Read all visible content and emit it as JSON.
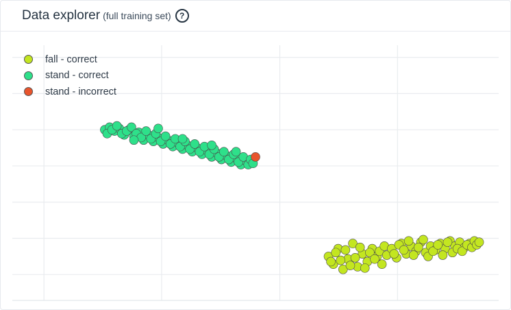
{
  "header": {
    "title": "Data explorer",
    "subtitle": "(full training set)",
    "help_icon": "question-circle-icon"
  },
  "chart_data": {
    "type": "scatter",
    "title": "",
    "xlabel": "",
    "ylabel": "",
    "xlim": [
      0,
      100
    ],
    "ylim": [
      0,
      100
    ],
    "grid": true,
    "legend": "top-left",
    "series": [
      {
        "name": "fall - correct",
        "color": "#c3e620",
        "points": [
          [
            65.0,
            17.0
          ],
          [
            66.0,
            14.0
          ],
          [
            67.0,
            20.0
          ],
          [
            68.0,
            12.0
          ],
          [
            69.0,
            16.0
          ],
          [
            70.0,
            22.0
          ],
          [
            71.0,
            13.0
          ],
          [
            72.0,
            18.0
          ],
          [
            73.0,
            15.0
          ],
          [
            74.0,
            20.0
          ],
          [
            75.0,
            17.0
          ],
          [
            76.0,
            14.0
          ],
          [
            66.5,
            18.5
          ],
          [
            67.5,
            15.5
          ],
          [
            68.5,
            19.5
          ],
          [
            70.5,
            16.5
          ],
          [
            71.5,
            20.5
          ],
          [
            72.5,
            12.5
          ],
          [
            73.5,
            18.5
          ],
          [
            74.5,
            16.0
          ],
          [
            65.5,
            15.0
          ],
          [
            69.5,
            13.5
          ],
          [
            75.5,
            19.0
          ],
          [
            76.5,
            21.0
          ],
          [
            77.0,
            17.5
          ],
          [
            78.0,
            20.0
          ],
          [
            79.0,
            16.5
          ],
          [
            80.0,
            22.0
          ],
          [
            81.0,
            18.0
          ],
          [
            82.0,
            21.0
          ],
          [
            83.0,
            19.0
          ],
          [
            84.0,
            22.5
          ],
          [
            85.0,
            18.5
          ],
          [
            86.0,
            21.0
          ],
          [
            87.0,
            19.5
          ],
          [
            88.0,
            22.0
          ],
          [
            89.0,
            20.0
          ],
          [
            90.0,
            23.0
          ],
          [
            91.0,
            21.0
          ],
          [
            92.0,
            22.5
          ],
          [
            93.0,
            20.5
          ],
          [
            94.0,
            22.0
          ],
          [
            78.5,
            18.0
          ],
          [
            79.5,
            21.5
          ],
          [
            80.5,
            19.5
          ],
          [
            81.5,
            23.0
          ],
          [
            82.5,
            17.5
          ],
          [
            83.5,
            20.5
          ],
          [
            84.5,
            23.5
          ],
          [
            85.5,
            17.0
          ],
          [
            86.5,
            19.0
          ],
          [
            87.5,
            21.5
          ],
          [
            88.5,
            17.5
          ],
          [
            89.5,
            22.5
          ],
          [
            90.5,
            18.5
          ],
          [
            91.5,
            20.0
          ],
          [
            92.5,
            19.0
          ],
          [
            93.5,
            21.5
          ],
          [
            94.5,
            20.5
          ],
          [
            95.0,
            23.0
          ],
          [
            95.5,
            21.5
          ],
          [
            96.0,
            22.5
          ]
        ]
      },
      {
        "name": "stand - correct",
        "color": "#2ee08a",
        "points": [
          [
            19.0,
            66.0
          ],
          [
            20.0,
            67.0
          ],
          [
            21.0,
            65.5
          ],
          [
            22.0,
            66.5
          ],
          [
            23.0,
            64.0
          ],
          [
            24.0,
            66.0
          ],
          [
            25.0,
            63.5
          ],
          [
            26.0,
            65.0
          ],
          [
            27.0,
            62.0
          ],
          [
            28.0,
            64.0
          ],
          [
            29.0,
            61.5
          ],
          [
            30.0,
            63.0
          ],
          [
            31.0,
            60.5
          ],
          [
            32.0,
            62.0
          ],
          [
            33.0,
            59.5
          ],
          [
            34.0,
            61.0
          ],
          [
            35.0,
            58.5
          ],
          [
            36.0,
            60.0
          ],
          [
            37.0,
            57.5
          ],
          [
            38.0,
            59.0
          ],
          [
            39.0,
            56.5
          ],
          [
            40.0,
            58.0
          ],
          [
            41.0,
            55.5
          ],
          [
            42.0,
            57.0
          ],
          [
            43.0,
            54.5
          ],
          [
            44.0,
            56.0
          ],
          [
            45.0,
            53.5
          ],
          [
            46.0,
            55.0
          ],
          [
            47.0,
            52.5
          ],
          [
            48.0,
            54.0
          ],
          [
            19.5,
            64.5
          ],
          [
            20.5,
            66.0
          ],
          [
            21.5,
            67.5
          ],
          [
            22.5,
            64.5
          ],
          [
            23.5,
            65.5
          ],
          [
            24.5,
            67.0
          ],
          [
            25.5,
            64.5
          ],
          [
            26.5,
            63.0
          ],
          [
            27.5,
            65.5
          ],
          [
            28.5,
            62.5
          ],
          [
            29.5,
            64.5
          ],
          [
            30.5,
            61.5
          ],
          [
            31.5,
            63.5
          ],
          [
            32.5,
            60.5
          ],
          [
            33.5,
            62.5
          ],
          [
            34.5,
            59.5
          ],
          [
            35.5,
            61.5
          ],
          [
            36.5,
            58.5
          ],
          [
            37.5,
            60.5
          ],
          [
            38.5,
            57.5
          ],
          [
            39.5,
            59.5
          ],
          [
            40.5,
            56.5
          ],
          [
            41.5,
            58.5
          ],
          [
            42.5,
            55.5
          ],
          [
            43.5,
            57.5
          ],
          [
            44.5,
            54.5
          ],
          [
            45.5,
            56.5
          ],
          [
            46.5,
            53.5
          ],
          [
            47.5,
            55.5
          ],
          [
            48.5,
            52.5
          ],
          [
            49.0,
            54.5
          ],
          [
            49.5,
            53.0
          ],
          [
            30.0,
            66.5
          ],
          [
            25.0,
            62.0
          ],
          [
            35.0,
            62.5
          ],
          [
            41.0,
            60.0
          ],
          [
            46.0,
            57.5
          ]
        ]
      },
      {
        "name": "stand - incorrect",
        "color": "#e8542c",
        "points": [
          [
            50.0,
            55.5
          ]
        ]
      }
    ]
  }
}
